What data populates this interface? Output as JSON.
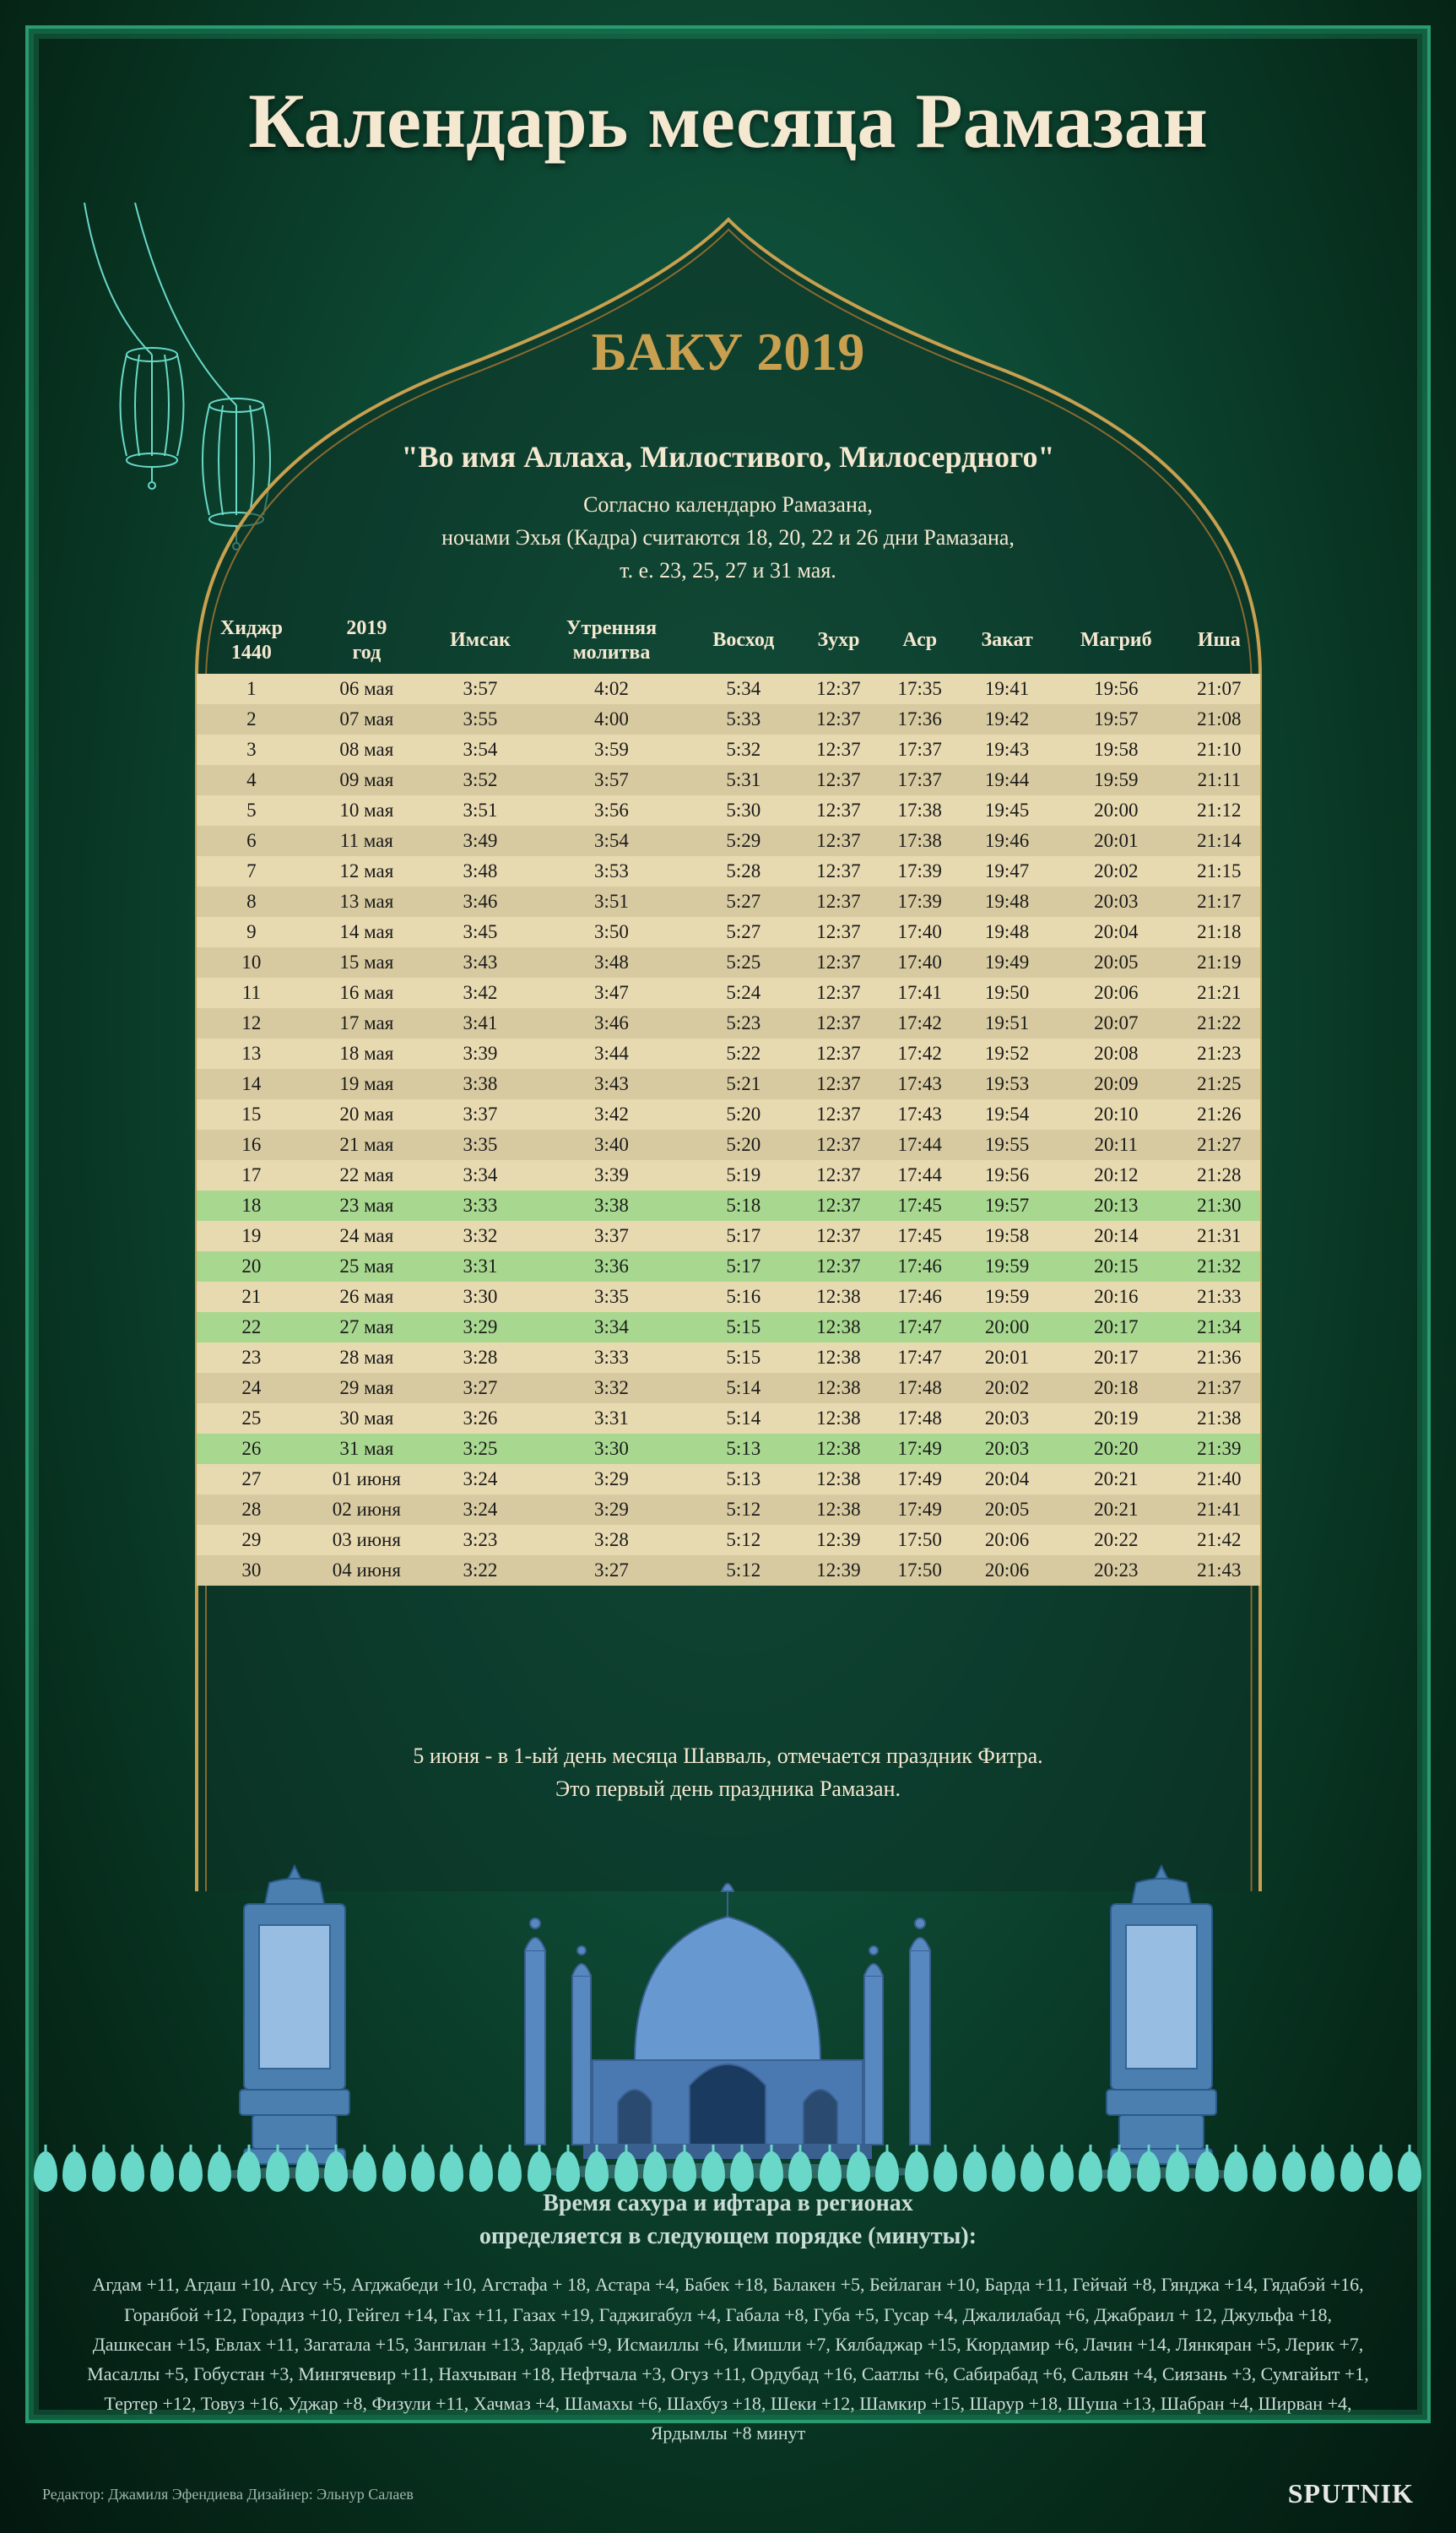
{
  "title": "Календарь месяца Рамазан",
  "subtitle": "БАКУ 2019",
  "intro": {
    "headline": "\"Во имя Аллаха, Милостивого, Милосердного\"",
    "line1": "Согласно календарю Рамазана,",
    "line2": "ночами Эхья (Кадра) считаются 18, 20, 22 и 26 дни Рамазана,",
    "line3": "т. е. 23, 25, 27 и 31 мая."
  },
  "columns": [
    "Хиджр 1440",
    "2019 год",
    "Имсак",
    "Утренняя молитва",
    "Восход",
    "Зухр",
    "Аср",
    "Закат",
    "Магриб",
    "Иша"
  ],
  "highlighted_rows": [
    17,
    19,
    21,
    25
  ],
  "rows": [
    [
      "1",
      "06 мая",
      "3:57",
      "4:02",
      "5:34",
      "12:37",
      "17:35",
      "19:41",
      "19:56",
      "21:07"
    ],
    [
      "2",
      "07 мая",
      "3:55",
      "4:00",
      "5:33",
      "12:37",
      "17:36",
      "19:42",
      "19:57",
      "21:08"
    ],
    [
      "3",
      "08 мая",
      "3:54",
      "3:59",
      "5:32",
      "12:37",
      "17:37",
      "19:43",
      "19:58",
      "21:10"
    ],
    [
      "4",
      "09 мая",
      "3:52",
      "3:57",
      "5:31",
      "12:37",
      "17:37",
      "19:44",
      "19:59",
      "21:11"
    ],
    [
      "5",
      "10 мая",
      "3:51",
      "3:56",
      "5:30",
      "12:37",
      "17:38",
      "19:45",
      "20:00",
      "21:12"
    ],
    [
      "6",
      "11 мая",
      "3:49",
      "3:54",
      "5:29",
      "12:37",
      "17:38",
      "19:46",
      "20:01",
      "21:14"
    ],
    [
      "7",
      "12 мая",
      "3:48",
      "3:53",
      "5:28",
      "12:37",
      "17:39",
      "19:47",
      "20:02",
      "21:15"
    ],
    [
      "8",
      "13 мая",
      "3:46",
      "3:51",
      "5:27",
      "12:37",
      "17:39",
      "19:48",
      "20:03",
      "21:17"
    ],
    [
      "9",
      "14 мая",
      "3:45",
      "3:50",
      "5:27",
      "12:37",
      "17:40",
      "19:48",
      "20:04",
      "21:18"
    ],
    [
      "10",
      "15 мая",
      "3:43",
      "3:48",
      "5:25",
      "12:37",
      "17:40",
      "19:49",
      "20:05",
      "21:19"
    ],
    [
      "11",
      "16 мая",
      "3:42",
      "3:47",
      "5:24",
      "12:37",
      "17:41",
      "19:50",
      "20:06",
      "21:21"
    ],
    [
      "12",
      "17 мая",
      "3:41",
      "3:46",
      "5:23",
      "12:37",
      "17:42",
      "19:51",
      "20:07",
      "21:22"
    ],
    [
      "13",
      "18 мая",
      "3:39",
      "3:44",
      "5:22",
      "12:37",
      "17:42",
      "19:52",
      "20:08",
      "21:23"
    ],
    [
      "14",
      "19 мая",
      "3:38",
      "3:43",
      "5:21",
      "12:37",
      "17:43",
      "19:53",
      "20:09",
      "21:25"
    ],
    [
      "15",
      "20 мая",
      "3:37",
      "3:42",
      "5:20",
      "12:37",
      "17:43",
      "19:54",
      "20:10",
      "21:26"
    ],
    [
      "16",
      "21 мая",
      "3:35",
      "3:40",
      "5:20",
      "12:37",
      "17:44",
      "19:55",
      "20:11",
      "21:27"
    ],
    [
      "17",
      "22 мая",
      "3:34",
      "3:39",
      "5:19",
      "12:37",
      "17:44",
      "19:56",
      "20:12",
      "21:28"
    ],
    [
      "18",
      "23 мая",
      "3:33",
      "3:38",
      "5:18",
      "12:37",
      "17:45",
      "19:57",
      "20:13",
      "21:30"
    ],
    [
      "19",
      "24 мая",
      "3:32",
      "3:37",
      "5:17",
      "12:37",
      "17:45",
      "19:58",
      "20:14",
      "21:31"
    ],
    [
      "20",
      "25 мая",
      "3:31",
      "3:36",
      "5:17",
      "12:37",
      "17:46",
      "19:59",
      "20:15",
      "21:32"
    ],
    [
      "21",
      "26 мая",
      "3:30",
      "3:35",
      "5:16",
      "12:38",
      "17:46",
      "19:59",
      "20:16",
      "21:33"
    ],
    [
      "22",
      "27 мая",
      "3:29",
      "3:34",
      "5:15",
      "12:38",
      "17:47",
      "20:00",
      "20:17",
      "21:34"
    ],
    [
      "23",
      "28 мая",
      "3:28",
      "3:33",
      "5:15",
      "12:38",
      "17:47",
      "20:01",
      "20:17",
      "21:36"
    ],
    [
      "24",
      "29 мая",
      "3:27",
      "3:32",
      "5:14",
      "12:38",
      "17:48",
      "20:02",
      "20:18",
      "21:37"
    ],
    [
      "25",
      "30 мая",
      "3:26",
      "3:31",
      "5:14",
      "12:38",
      "17:48",
      "20:03",
      "20:19",
      "21:38"
    ],
    [
      "26",
      "31 мая",
      "3:25",
      "3:30",
      "5:13",
      "12:38",
      "17:49",
      "20:03",
      "20:20",
      "21:39"
    ],
    [
      "27",
      "01 июня",
      "3:24",
      "3:29",
      "5:13",
      "12:38",
      "17:49",
      "20:04",
      "20:21",
      "21:40"
    ],
    [
      "28",
      "02 июня",
      "3:24",
      "3:29",
      "5:12",
      "12:38",
      "17:49",
      "20:05",
      "20:21",
      "21:41"
    ],
    [
      "29",
      "03 июня",
      "3:23",
      "3:28",
      "5:12",
      "12:39",
      "17:50",
      "20:06",
      "20:22",
      "21:42"
    ],
    [
      "30",
      "04 июня",
      "3:22",
      "3:27",
      "5:12",
      "12:39",
      "17:50",
      "20:06",
      "20:23",
      "21:43"
    ]
  ],
  "footnote": {
    "l1": "5 июня - в 1-ый день месяца Шавваль, отмечается праздник Фитра.",
    "l2": "Это первый день праздника Рамазан."
  },
  "regions": {
    "title1": "Время сахура и ифтара в регионах",
    "title2": "определяется в следующем порядке (минуты):",
    "text": "Агдам +11, Агдаш +10, Агсу +5, Агджабеди +10, Агстафа + 18, Астара +4, Бабек +18, Балакен +5, Бейлаган +10, Барда +11, Гейчай +8, Гянджа +14, Гядабэй +16, Горанбой +12, Горадиз +10, Гейгел +14, Гах +11, Газах +19, Гаджигабул +4, Габала +8, Губа +5, Гусар +4, Джалилабад +6, Джабраил + 12, Джульфа +18, Дашкесан +15, Евлах +11, Загатала +15, Зангилан +13, Зардаб +9, Исмаиллы +6, Имишли +7, Кялбаджар +15, Кюрдамир +6, Лачин +14, Лянкяран +5, Лерик +7, Масаллы +5, Гобустан +3, Мингячевир +11, Нахчыван +18, Нефтчала +3, Огуз +11, Ордубад +16, Саатлы +6, Сабирабад +6, Сальян +4, Сиязань +3, Сумгайыт +1, Тертер +12, Товуз +16, Уджар +8, Физули +11, Хачмаз +4, Шамахы +6, Шахбуз +18, Шеки +12, Шамкир +15, Шарур +18, Шуша +13, Шабран +4, Ширван +4, Ярдымлы +8 минут"
  },
  "credits": "Редактор: Джамиля Эфендиева   Дизайнер: Эльнур Салаев",
  "source": "SPUTNIK",
  "colors": {
    "arch_stroke": "#c8a050",
    "arch_fill": "rgba(15,60,45,0.6)",
    "lantern": "#6ad8c8",
    "mosque": "#5080b8"
  }
}
